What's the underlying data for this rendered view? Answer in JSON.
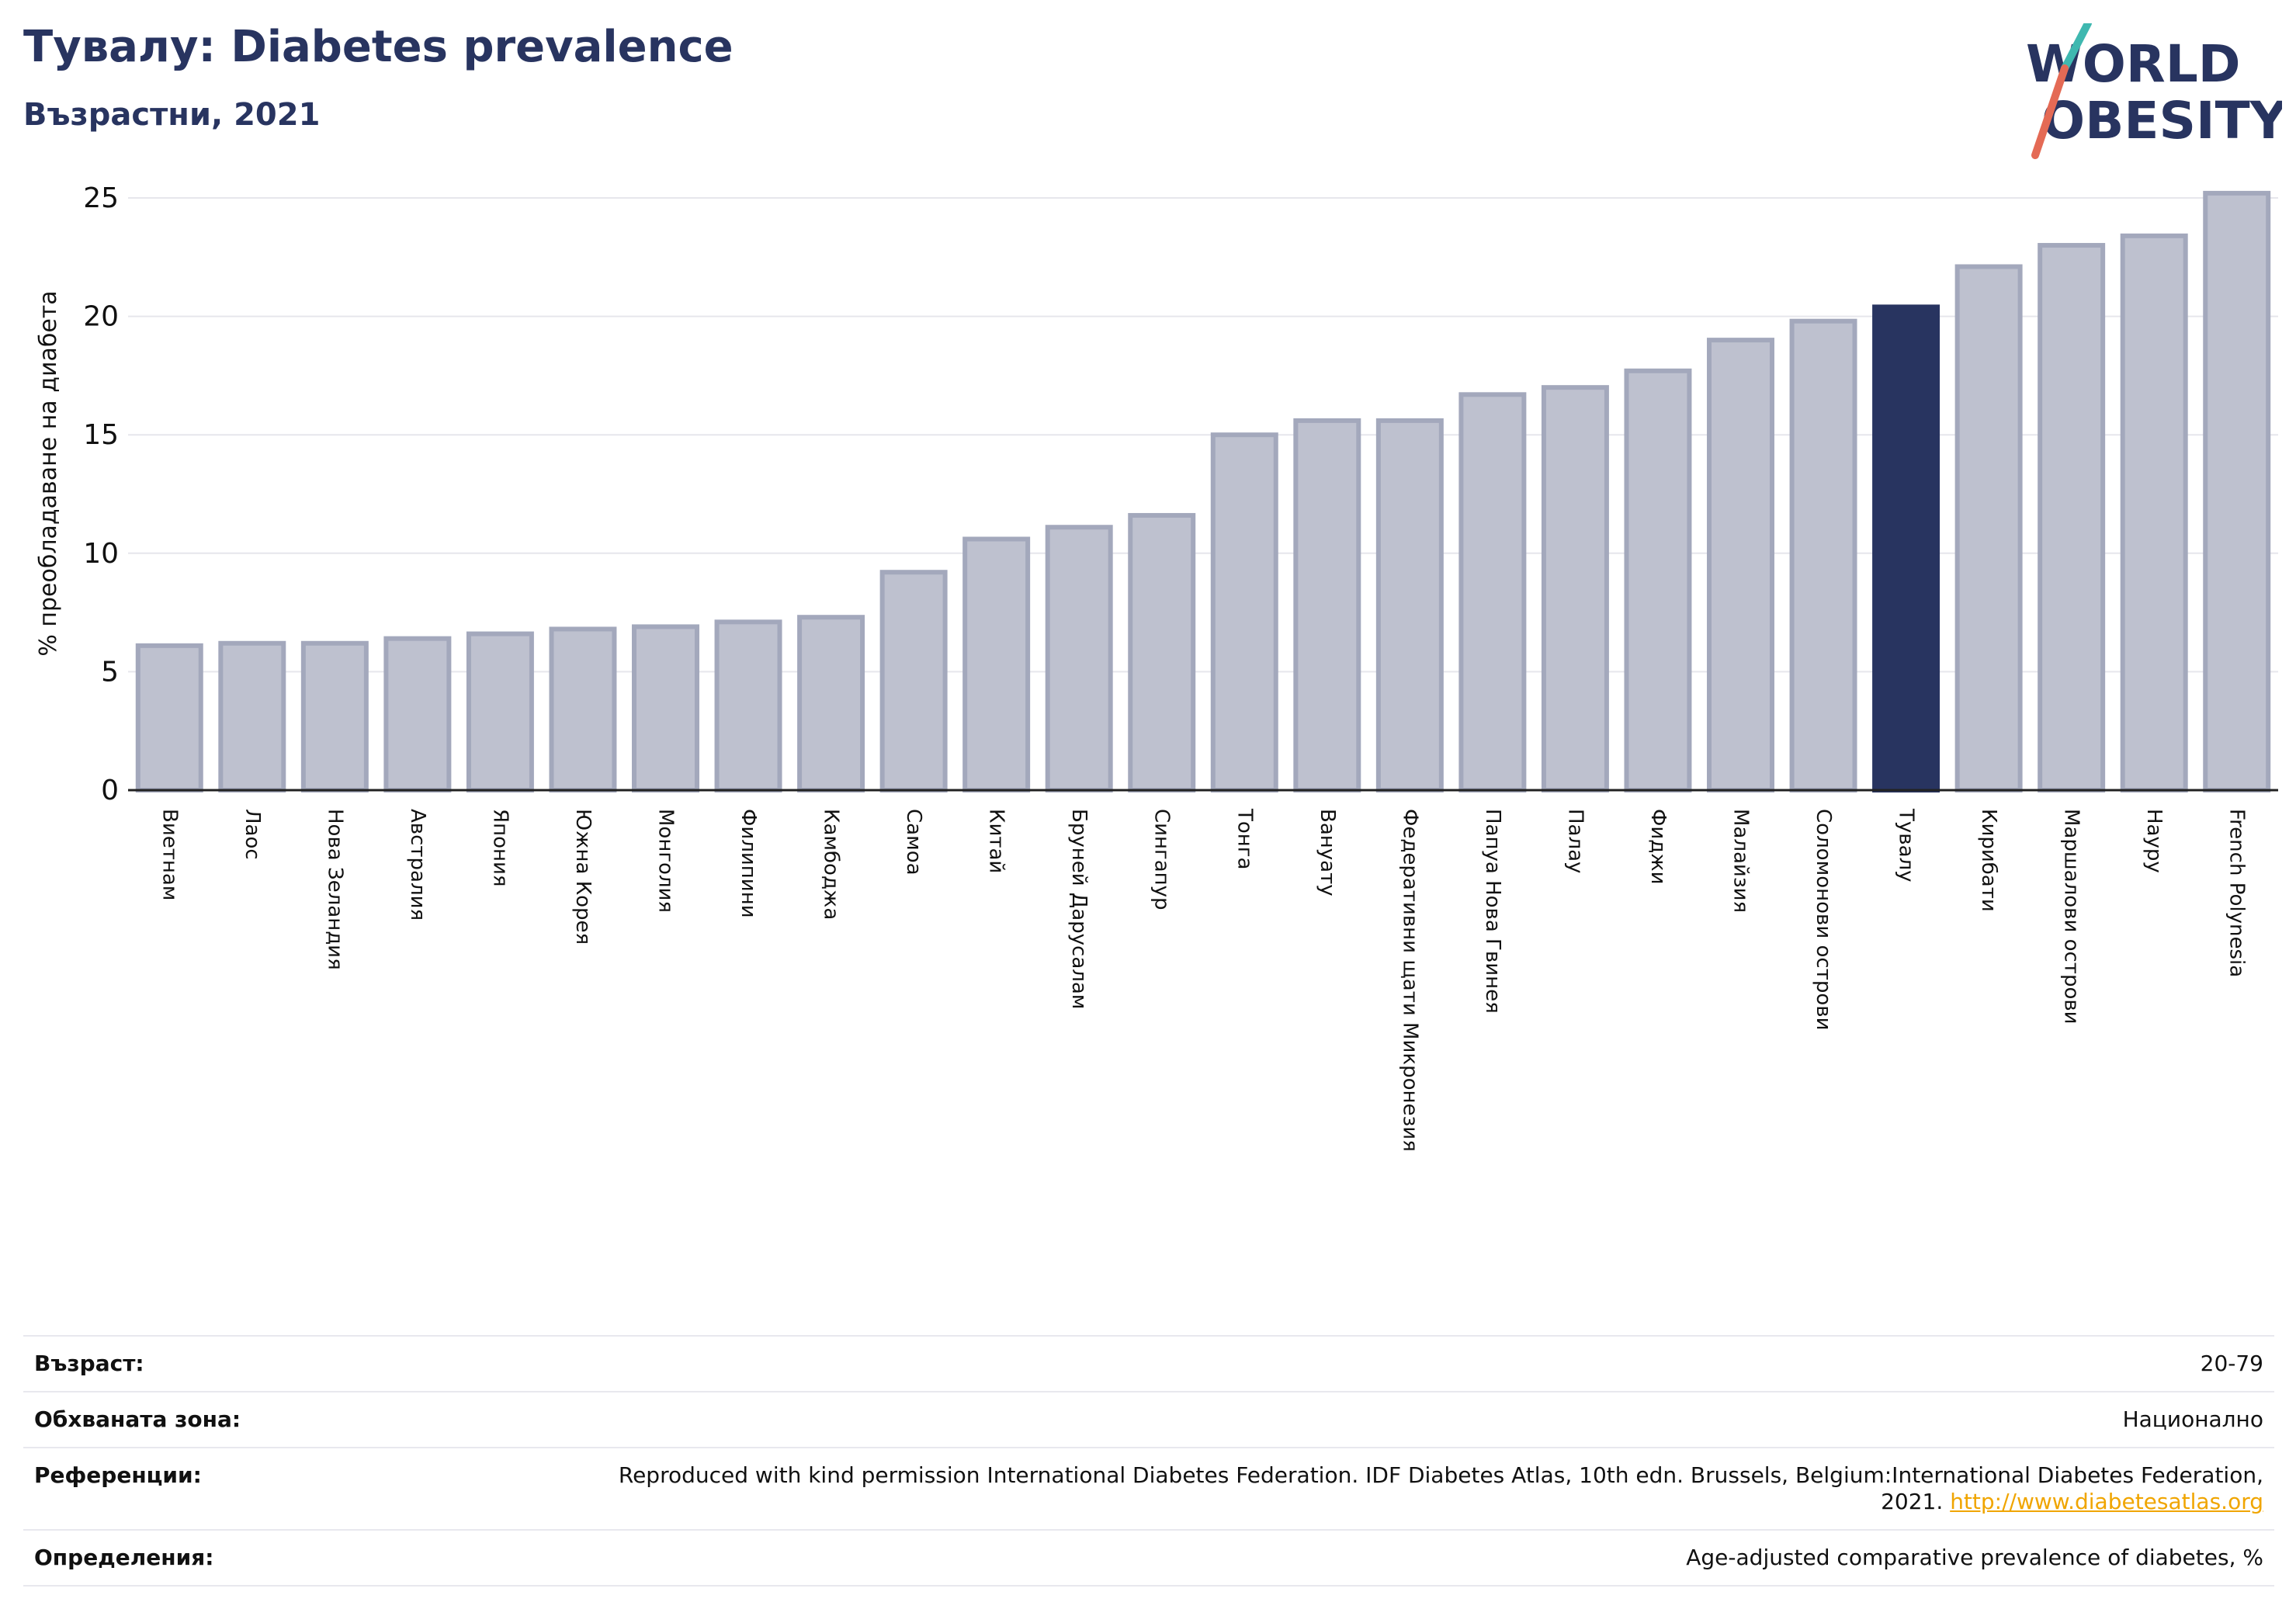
{
  "header": {
    "title": "Тувалу: Diabetes prevalence",
    "subtitle": "Възрастни, 2021"
  },
  "logo": {
    "line1": "WORLD",
    "line2": "OBESITY"
  },
  "chart_data": {
    "type": "bar",
    "ylabel": "% преобладаване на диабета",
    "ylim": [
      0,
      25
    ],
    "yticks": [
      0,
      5,
      10,
      15,
      20,
      25
    ],
    "grid": true,
    "highlight": "Тувалу",
    "colors": {
      "bar": "#bec1cf",
      "bar_edge": "#a3a8bc",
      "highlight": "#283460",
      "grid": "#e6e6ec",
      "axis": "#222222"
    },
    "categories": [
      "Виетнам",
      "Лаос",
      "Нова Зеландия",
      "Австралия",
      "Япония",
      "Южна Корея",
      "Монголия",
      "Филипини",
      "Камбоджа",
      "Самоа",
      "Китай",
      "Бруней Дарусалам",
      "Сингапур",
      "Тонга",
      "Вануату",
      "Федеративни щати Микронезия",
      "Папуа Нова Гвинея",
      "Палау",
      "Фиджи",
      "Малайзия",
      "Соломонови острови",
      "Тувалу",
      "Кирибати",
      "Маршалови острови",
      "Науру",
      "French Polynesia"
    ],
    "values": [
      6.1,
      6.2,
      6.2,
      6.4,
      6.6,
      6.8,
      6.9,
      7.1,
      7.3,
      9.2,
      10.6,
      11.1,
      11.6,
      15.0,
      15.6,
      15.6,
      16.7,
      17.0,
      17.7,
      19.0,
      19.8,
      20.4,
      22.1,
      23.0,
      23.4,
      25.2
    ]
  },
  "meta": {
    "age_label": "Възраст:",
    "age_value": "20-79",
    "coverage_label": "Обхваната зона:",
    "coverage_value": "Национално",
    "references_label": "Референции:",
    "references_value": "Reproduced with kind permission International Diabetes Federation.  IDF Diabetes Atlas, 10th edn. Brussels, Belgium:International Diabetes Federation, 2021.",
    "references_link": "http://www.diabetesatlas.org",
    "definitions_label": "Определения:",
    "definitions_value": "Age-adjusted comparative prevalence of diabetes, %"
  }
}
